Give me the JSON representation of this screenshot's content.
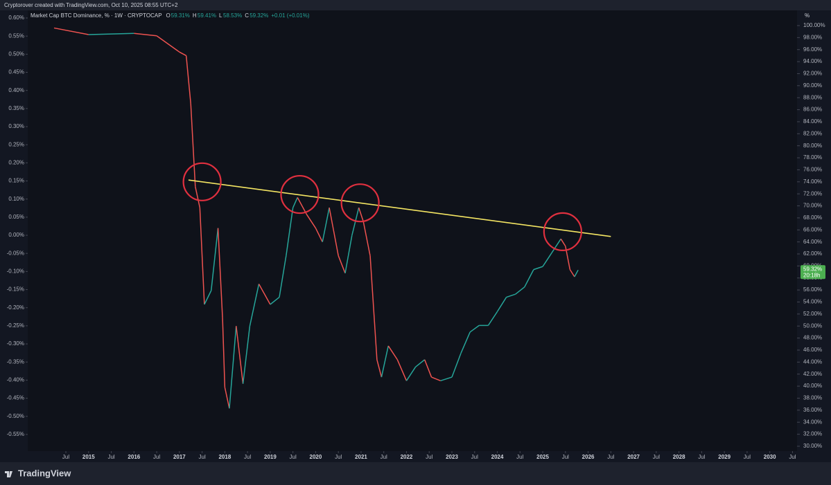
{
  "header": {
    "credit": "Cryptorover created with TradingView.com, Oct 10, 2025 08:55 UTC+2",
    "brand": "TradingView"
  },
  "chart_data": {
    "type": "line",
    "title": "Market Cap BTC Dominance, % · 1W · CRYPTOCAP",
    "ohlc": [
      {
        "key": "O",
        "value": "59.31%"
      },
      {
        "key": "H",
        "value": "59.41%"
      },
      {
        "key": "L",
        "value": "58.53%"
      },
      {
        "key": "C",
        "value": "59.32%"
      }
    ],
    "change": "+0.01 (+0.01%)",
    "unit_label": "%",
    "up_color": "#26a69a",
    "down_color": "#ef5350",
    "series": [
      {
        "name": "BTC Dominance",
        "x": [
          2014.24,
          2015.0,
          2016.0,
          2016.5,
          2017.0,
          2017.15,
          2017.25,
          2017.35,
          2017.45,
          2017.55,
          2017.7,
          2017.85,
          2017.95,
          2018.0,
          2018.1,
          2018.25,
          2018.4,
          2018.55,
          2018.75,
          2019.0,
          2019.2,
          2019.35,
          2019.5,
          2019.6,
          2019.8,
          2020.0,
          2020.15,
          2020.3,
          2020.5,
          2020.65,
          2020.8,
          2020.95,
          2021.05,
          2021.2,
          2021.35,
          2021.45,
          2021.6,
          2021.8,
          2022.0,
          2022.2,
          2022.4,
          2022.55,
          2022.75,
          2023.0,
          2023.2,
          2023.4,
          2023.6,
          2023.8,
          2024.0,
          2024.2,
          2024.4,
          2024.6,
          2024.8,
          2025.0,
          2025.2,
          2025.4,
          2025.5,
          2025.6,
          2025.7,
          2025.78
        ],
        "values": [
          99.6,
          98.5,
          98.7,
          98.3,
          95.6,
          95.0,
          87.0,
          73.2,
          69.7,
          53.6,
          55.9,
          66.3,
          51.3,
          39.8,
          36.3,
          50.0,
          40.4,
          50.0,
          57.0,
          53.6,
          54.8,
          61.7,
          69.7,
          71.4,
          68.6,
          66.3,
          64.0,
          69.7,
          61.7,
          58.8,
          65.1,
          69.7,
          67.4,
          61.7,
          44.4,
          41.5,
          46.7,
          44.4,
          40.9,
          43.2,
          44.4,
          41.5,
          40.9,
          41.5,
          45.5,
          49.0,
          50.1,
          50.1,
          52.4,
          54.8,
          55.3,
          56.5,
          59.4,
          59.9,
          62.2,
          64.5,
          63.3,
          59.4,
          58.2,
          59.32
        ]
      }
    ],
    "trendline": {
      "x": [
        2017.2,
        2026.5
      ],
      "values": [
        74.3,
        64.9
      ],
      "color": "#f5e663"
    },
    "highlights": {
      "x": [
        2017.5,
        2019.65,
        2020.98,
        2025.44
      ],
      "values": [
        74.0,
        71.9,
        70.5,
        65.7
      ],
      "color": "#e0303f"
    },
    "last_price": {
      "value": 59.32,
      "label": "59.32%",
      "countdown": "20:18h",
      "color": "#4caf50"
    },
    "xlim": [
      2013.66,
      2030.6
    ],
    "xticks": [
      {
        "value": 2014.5,
        "label": "Jul"
      },
      {
        "value": 2015,
        "label": "2015"
      },
      {
        "value": 2015.5,
        "label": "Jul"
      },
      {
        "value": 2016,
        "label": "2016"
      },
      {
        "value": 2016.5,
        "label": "Jul"
      },
      {
        "value": 2017,
        "label": "2017"
      },
      {
        "value": 2017.5,
        "label": "Jul"
      },
      {
        "value": 2018,
        "label": "2018"
      },
      {
        "value": 2018.5,
        "label": "Jul"
      },
      {
        "value": 2019,
        "label": "2019"
      },
      {
        "value": 2019.5,
        "label": "Jul"
      },
      {
        "value": 2020,
        "label": "2020"
      },
      {
        "value": 2020.5,
        "label": "Jul"
      },
      {
        "value": 2021,
        "label": "2021"
      },
      {
        "value": 2021.5,
        "label": "Jul"
      },
      {
        "value": 2022,
        "label": "2022"
      },
      {
        "value": 2022.5,
        "label": "Jul"
      },
      {
        "value": 2023,
        "label": "2023"
      },
      {
        "value": 2023.5,
        "label": "Jul"
      },
      {
        "value": 2024,
        "label": "2024"
      },
      {
        "value": 2024.5,
        "label": "Jul"
      },
      {
        "value": 2025,
        "label": "2025"
      },
      {
        "value": 2025.5,
        "label": "Jul"
      },
      {
        "value": 2026,
        "label": "2026"
      },
      {
        "value": 2026.5,
        "label": "Jul"
      },
      {
        "value": 2027,
        "label": "2027"
      },
      {
        "value": 2027.5,
        "label": "Jul"
      },
      {
        "value": 2028,
        "label": "2028"
      },
      {
        "value": 2028.5,
        "label": "Jul"
      },
      {
        "value": 2029,
        "label": "2029"
      },
      {
        "value": 2029.5,
        "label": "Jul"
      },
      {
        "value": 2030,
        "label": "2030"
      },
      {
        "value": 2030.5,
        "label": "Jul"
      }
    ],
    "ylim": [
      29.19,
      102.53
    ],
    "yticks": [
      {
        "value": 30,
        "label": "30.00%"
      },
      {
        "value": 32,
        "label": "32.00%"
      },
      {
        "value": 34,
        "label": "34.00%"
      },
      {
        "value": 36,
        "label": "36.00%"
      },
      {
        "value": 38,
        "label": "38.00%"
      },
      {
        "value": 40,
        "label": "40.00%"
      },
      {
        "value": 42,
        "label": "42.00%"
      },
      {
        "value": 44,
        "label": "44.00%"
      },
      {
        "value": 46,
        "label": "46.00%"
      },
      {
        "value": 48,
        "label": "48.00%"
      },
      {
        "value": 50,
        "label": "50.00%"
      },
      {
        "value": 52,
        "label": "52.00%"
      },
      {
        "value": 54,
        "label": "54.00%"
      },
      {
        "value": 56,
        "label": "56.00%"
      },
      {
        "value": 58,
        "label": "58.00%"
      },
      {
        "value": 60,
        "label": "60.00%"
      },
      {
        "value": 62,
        "label": "62.00%"
      },
      {
        "value": 64,
        "label": "64.00%"
      },
      {
        "value": 66,
        "label": "66.00%"
      },
      {
        "value": 68,
        "label": "68.00%"
      },
      {
        "value": 70,
        "label": "70.00%"
      },
      {
        "value": 72,
        "label": "72.00%"
      },
      {
        "value": 74,
        "label": "74.00%"
      },
      {
        "value": 76,
        "label": "76.00%"
      },
      {
        "value": 78,
        "label": "78.00%"
      },
      {
        "value": 80,
        "label": "80.00%"
      },
      {
        "value": 82,
        "label": "82.00%"
      },
      {
        "value": 84,
        "label": "84.00%"
      },
      {
        "value": 86,
        "label": "86.00%"
      },
      {
        "value": 88,
        "label": "88.00%"
      },
      {
        "value": 90,
        "label": "90.00%"
      },
      {
        "value": 92,
        "label": "92.00%"
      },
      {
        "value": 94,
        "label": "94.00%"
      },
      {
        "value": 96,
        "label": "96.00%"
      },
      {
        "value": 98,
        "label": "98.00%"
      },
      {
        "value": 100,
        "label": "100.00%"
      }
    ],
    "y2lim": [
      -0.596,
      0.621
    ],
    "y2ticks": [
      {
        "value": -0.55,
        "label": "-0.55%"
      },
      {
        "value": -0.5,
        "label": "-0.50%"
      },
      {
        "value": -0.45,
        "label": "-0.45%"
      },
      {
        "value": -0.4,
        "label": "-0.40%"
      },
      {
        "value": -0.35,
        "label": "-0.35%"
      },
      {
        "value": -0.3,
        "label": "-0.30%"
      },
      {
        "value": -0.25,
        "label": "-0.25%"
      },
      {
        "value": -0.2,
        "label": "-0.20%"
      },
      {
        "value": -0.15,
        "label": "-0.15%"
      },
      {
        "value": -0.1,
        "label": "-0.10%"
      },
      {
        "value": -0.05,
        "label": "-0.05%"
      },
      {
        "value": 0,
        "label": "0.00%"
      },
      {
        "value": 0.05,
        "label": "0.05%"
      },
      {
        "value": 0.1,
        "label": "0.10%"
      },
      {
        "value": 0.15,
        "label": "0.15%"
      },
      {
        "value": 0.2,
        "label": "0.20%"
      },
      {
        "value": 0.25,
        "label": "0.25%"
      },
      {
        "value": 0.3,
        "label": "0.30%"
      },
      {
        "value": 0.35,
        "label": "0.35%"
      },
      {
        "value": 0.4,
        "label": "0.40%"
      },
      {
        "value": 0.45,
        "label": "0.45%"
      },
      {
        "value": 0.5,
        "label": "0.50%"
      },
      {
        "value": 0.55,
        "label": "0.55%"
      },
      {
        "value": 0.6,
        "label": "0.60%"
      }
    ]
  }
}
